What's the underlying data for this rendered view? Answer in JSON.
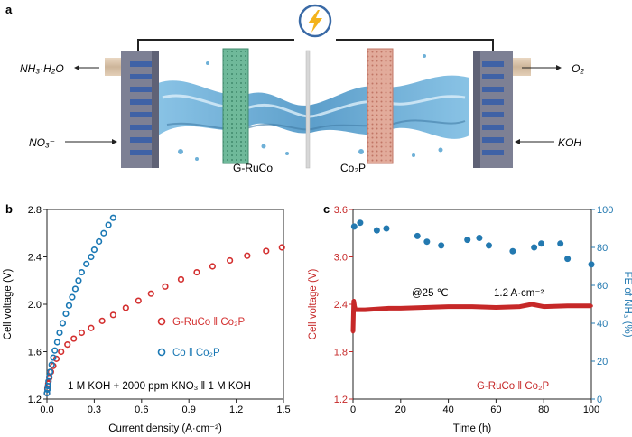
{
  "figure": {
    "panel_a": {
      "label": "a",
      "left_top_output": "NH₃·H₂O",
      "left_bottom_input": "NO₃⁻",
      "right_top_output": "O₂",
      "right_bottom_input": "KOH",
      "cathode_label": "G-RuCo",
      "anode_label": "Co₂P",
      "power_icon": "lightning-bolt-icon",
      "colors": {
        "cathode": "#5aa78a",
        "anode": "#d99a8a",
        "electrolyte": "#5fa8d3",
        "plate": "#7d8094",
        "bolt": "#f3b21b",
        "ring": "#3a6aa6"
      }
    },
    "panel_b": {
      "label": "b",
      "condition_note": "1 M KOH + 2000 ppm KNO₃ ‖ 1 M KOH"
    },
    "panel_c": {
      "label": "c",
      "condition_note": "@25 ℃",
      "current_note": "1.2 A·cm⁻²",
      "series_label": "G-RuCo ‖ Co₂P"
    }
  },
  "chart_data": [
    {
      "type": "scatter",
      "xlabel": "Current density (A·cm⁻²)",
      "ylabel": "Cell voltage (V)",
      "xlim": [
        0.0,
        1.5
      ],
      "ylim": [
        1.2,
        2.8
      ],
      "xticks": [
        "0.0",
        "0.3",
        "0.6",
        "0.9",
        "1.2",
        "1.5"
      ],
      "yticks": [
        "1.2",
        "1.6",
        "2.0",
        "2.4",
        "2.8"
      ],
      "series": [
        {
          "name": "G-RuCo ‖ Co₂P",
          "color": "#d32f2f",
          "x": [
            0.0,
            0.003,
            0.008,
            0.015,
            0.025,
            0.04,
            0.06,
            0.09,
            0.13,
            0.17,
            0.22,
            0.28,
            0.35,
            0.42,
            0.5,
            0.58,
            0.66,
            0.75,
            0.85,
            0.95,
            1.05,
            1.16,
            1.27,
            1.39,
            1.49
          ],
          "y": [
            1.25,
            1.29,
            1.33,
            1.38,
            1.43,
            1.48,
            1.54,
            1.6,
            1.66,
            1.71,
            1.76,
            1.8,
            1.86,
            1.91,
            1.97,
            2.03,
            2.09,
            2.15,
            2.21,
            2.27,
            2.32,
            2.37,
            2.41,
            2.45,
            2.48
          ]
        },
        {
          "name": "Co ‖ Co₂P",
          "color": "#1a78b4",
          "x": [
            0.0,
            0.003,
            0.006,
            0.01,
            0.015,
            0.02,
            0.03,
            0.04,
            0.05,
            0.065,
            0.08,
            0.1,
            0.12,
            0.14,
            0.16,
            0.18,
            0.2,
            0.22,
            0.25,
            0.28,
            0.3,
            0.33,
            0.36,
            0.39,
            0.42
          ],
          "y": [
            1.25,
            1.28,
            1.31,
            1.35,
            1.39,
            1.43,
            1.49,
            1.55,
            1.61,
            1.68,
            1.76,
            1.84,
            1.92,
            1.99,
            2.06,
            2.13,
            2.2,
            2.27,
            2.34,
            2.4,
            2.46,
            2.53,
            2.6,
            2.67,
            2.73
          ]
        }
      ]
    },
    {
      "type": "scatter",
      "xlabel": "Time (h)",
      "ylabel": "Cell voltage (V)",
      "y2label": "FE of NH₃ (%)",
      "xlim": [
        0,
        100
      ],
      "ylim": [
        1.2,
        3.6
      ],
      "y2lim": [
        0,
        100
      ],
      "xticks": [
        "0",
        "20",
        "40",
        "60",
        "80",
        "100"
      ],
      "yticks": [
        "1.2",
        "1.8",
        "2.4",
        "3.0",
        "3.6"
      ],
      "y2ticks": [
        "0",
        "20",
        "40",
        "60",
        "80",
        "100"
      ],
      "series": [
        {
          "name": "Cell voltage",
          "axis": "left",
          "color": "#c62828",
          "x": [
            0,
            0.3,
            0.6,
            1,
            2,
            5,
            10,
            15,
            20,
            30,
            40,
            50,
            60,
            70,
            75,
            80,
            90,
            100
          ],
          "y": [
            2.05,
            2.44,
            2.38,
            2.33,
            2.33,
            2.33,
            2.34,
            2.35,
            2.35,
            2.36,
            2.37,
            2.37,
            2.36,
            2.37,
            2.4,
            2.37,
            2.38,
            2.38
          ]
        },
        {
          "name": "FE of NH₃",
          "axis": "right",
          "color": "#2379b0",
          "x": [
            0.5,
            3,
            10,
            14,
            27,
            31,
            37,
            48,
            53,
            57,
            67,
            76,
            79,
            87,
            90,
            100
          ],
          "y": [
            91,
            93,
            89,
            90,
            86,
            83,
            81,
            84,
            85,
            81,
            78,
            80,
            82,
            82,
            74,
            71
          ]
        }
      ]
    }
  ]
}
